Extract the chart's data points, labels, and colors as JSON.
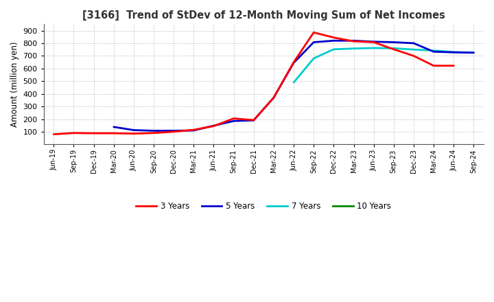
{
  "title": "[3166]  Trend of StDev of 12-Month Moving Sum of Net Incomes",
  "ylabel": "Amount (million yen)",
  "background_color": "#ffffff",
  "grid_color": "#aaaaaa",
  "ylim": [
    0,
    950
  ],
  "yticks": [
    100,
    200,
    300,
    400,
    500,
    600,
    700,
    800,
    900
  ],
  "series": {
    "3 Years": {
      "color": "#ff0000",
      "data": [
        [
          "Jun-19",
          80
        ],
        [
          "Sep-19",
          90
        ],
        [
          "Dec-19",
          88
        ],
        [
          "Mar-20",
          88
        ],
        [
          "Jun-20",
          85
        ],
        [
          "Sep-20",
          90
        ],
        [
          "Dec-20",
          100
        ],
        [
          "Mar-21",
          115
        ],
        [
          "Jun-21",
          145
        ],
        [
          "Sep-21",
          205
        ],
        [
          "Dec-21",
          192
        ],
        [
          "Mar-22",
          370
        ],
        [
          "Jun-22",
          650
        ],
        [
          "Sep-22",
          885
        ],
        [
          "Dec-22",
          845
        ],
        [
          "Mar-23",
          815
        ],
        [
          "Jun-23",
          808
        ],
        [
          "Sep-23",
          752
        ],
        [
          "Dec-23",
          700
        ],
        [
          "Mar-24",
          622
        ],
        [
          "Jun-24",
          622
        ],
        [
          "Sep-24",
          null
        ]
      ]
    },
    "5 Years": {
      "color": "#0000cc",
      "data": [
        [
          "Jun-19",
          null
        ],
        [
          "Sep-19",
          null
        ],
        [
          "Dec-19",
          null
        ],
        [
          "Mar-20",
          138
        ],
        [
          "Jun-20",
          113
        ],
        [
          "Sep-20",
          108
        ],
        [
          "Dec-20",
          108
        ],
        [
          "Mar-21",
          110
        ],
        [
          "Jun-21",
          148
        ],
        [
          "Sep-21",
          185
        ],
        [
          "Dec-21",
          190
        ],
        [
          "Mar-22",
          370
        ],
        [
          "Jun-22",
          645
        ],
        [
          "Sep-22",
          808
        ],
        [
          "Dec-22",
          820
        ],
        [
          "Mar-23",
          820
        ],
        [
          "Jun-23",
          812
        ],
        [
          "Sep-23",
          808
        ],
        [
          "Dec-23",
          800
        ],
        [
          "Mar-24",
          733
        ],
        [
          "Jun-24",
          728
        ],
        [
          "Sep-24",
          725
        ]
      ]
    },
    "7 Years": {
      "color": "#00cccc",
      "data": [
        [
          "Jun-19",
          null
        ],
        [
          "Sep-19",
          null
        ],
        [
          "Dec-19",
          null
        ],
        [
          "Mar-20",
          null
        ],
        [
          "Jun-20",
          null
        ],
        [
          "Sep-20",
          null
        ],
        [
          "Dec-20",
          null
        ],
        [
          "Mar-21",
          null
        ],
        [
          "Jun-21",
          null
        ],
        [
          "Sep-21",
          null
        ],
        [
          "Dec-21",
          null
        ],
        [
          "Mar-22",
          null
        ],
        [
          "Jun-22",
          490
        ],
        [
          "Sep-22",
          680
        ],
        [
          "Dec-22",
          752
        ],
        [
          "Mar-23",
          758
        ],
        [
          "Jun-23",
          762
        ],
        [
          "Sep-23",
          760
        ],
        [
          "Dec-23",
          750
        ],
        [
          "Mar-24",
          742
        ],
        [
          "Jun-24",
          730
        ],
        [
          "Sep-24",
          726
        ]
      ]
    },
    "10 Years": {
      "color": "#008800",
      "data": [
        [
          "Jun-19",
          null
        ],
        [
          "Sep-19",
          null
        ],
        [
          "Dec-19",
          null
        ],
        [
          "Mar-20",
          null
        ],
        [
          "Jun-20",
          null
        ],
        [
          "Sep-20",
          null
        ],
        [
          "Dec-20",
          null
        ],
        [
          "Mar-21",
          null
        ],
        [
          "Jun-21",
          null
        ],
        [
          "Sep-21",
          null
        ],
        [
          "Dec-21",
          null
        ],
        [
          "Mar-22",
          null
        ],
        [
          "Jun-22",
          null
        ],
        [
          "Sep-22",
          null
        ],
        [
          "Dec-22",
          null
        ],
        [
          "Mar-23",
          null
        ],
        [
          "Jun-23",
          null
        ],
        [
          "Sep-23",
          null
        ],
        [
          "Dec-23",
          null
        ],
        [
          "Mar-24",
          null
        ],
        [
          "Jun-24",
          null
        ],
        [
          "Sep-24",
          null
        ]
      ]
    }
  },
  "x_labels": [
    "Jun-19",
    "Sep-19",
    "Dec-19",
    "Mar-20",
    "Jun-20",
    "Sep-20",
    "Dec-20",
    "Mar-21",
    "Jun-21",
    "Sep-21",
    "Dec-21",
    "Mar-22",
    "Jun-22",
    "Sep-22",
    "Dec-22",
    "Mar-23",
    "Jun-23",
    "Sep-23",
    "Dec-23",
    "Mar-24",
    "Jun-24",
    "Sep-24"
  ],
  "legend_order": [
    "3 Years",
    "5 Years",
    "7 Years",
    "10 Years"
  ]
}
